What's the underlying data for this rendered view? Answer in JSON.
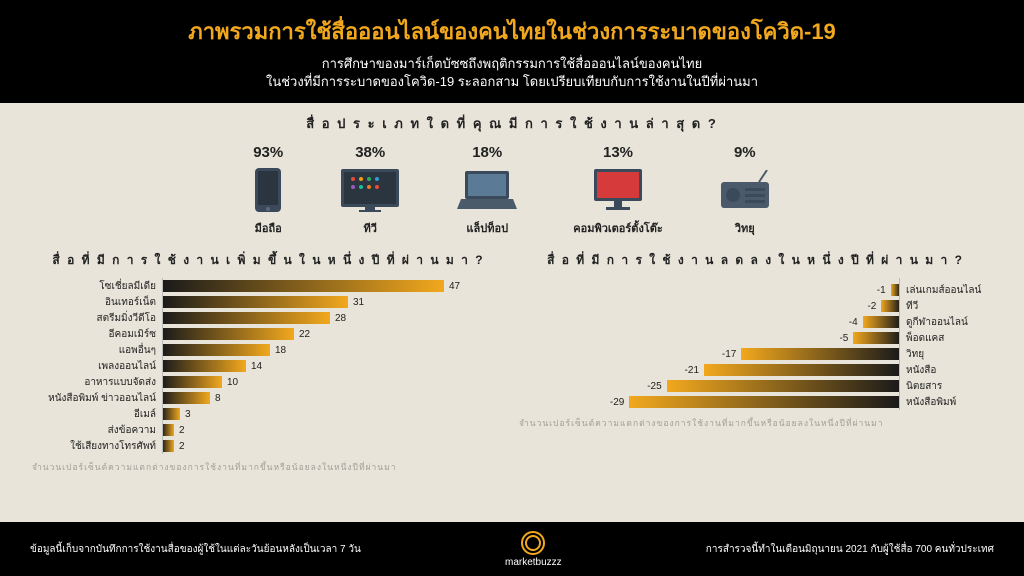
{
  "header": {
    "title": "ภาพรวมการใช้สื่อออนไลน์ของคนไทยในช่วงการระบาดของโควิด-19",
    "subtitle1": "การศึกษาของมาร์เก็ตบัซซถึงพฤติกรรมการใช้สื่อออนไลน์ของคนไทย",
    "subtitle2": "ในช่วงที่มีการระบาดของโควิด-19 ระลอกสาม โดยเปรียบเทียบกับการใช้งานในปีที่ผ่านมา"
  },
  "section_question": "สื่ อ ป ร ะ เ ภ ท ใ ด ที่ คุ ณ มี ก า ร ใ ช้ ง า น ล่ า สุ ด ?",
  "devices": [
    {
      "pct": "93%",
      "label": "มือถือ",
      "icon": "phone"
    },
    {
      "pct": "38%",
      "label": "ทีวี",
      "icon": "tv"
    },
    {
      "pct": "18%",
      "label": "แล็ปท็อป",
      "icon": "laptop"
    },
    {
      "pct": "13%",
      "label": "คอมพิวเตอร์ตั้งโต๊ะ",
      "icon": "desktop"
    },
    {
      "pct": "9%",
      "label": "วิทยุ",
      "icon": "radio"
    }
  ],
  "chart_left": {
    "title": "สื่ อ ที่ มี ก า ร ใ ช้ ง า น เ พิ่ ม ขึ้ น ใ น ห นึ่ ง ปี ที่ ผ่ า น ม า ?",
    "max": 50,
    "rows": [
      {
        "label": "โซเชี่ยลมีเดีย",
        "value": 47
      },
      {
        "label": "อินเทอร์เน็ต",
        "value": 31
      },
      {
        "label": "สตรีมมิ่งวีดีโอ",
        "value": 28
      },
      {
        "label": "อีคอมเมิร์ซ",
        "value": 22
      },
      {
        "label": "แอพอื่นๆ",
        "value": 18
      },
      {
        "label": "เพลงออนไลน์",
        "value": 14
      },
      {
        "label": "อาหารแบบจัดส่ง",
        "value": 10
      },
      {
        "label": "หนังสือพิมพ์ ข่าวออนไลน์",
        "value": 8
      },
      {
        "label": "อีเมล์",
        "value": 3
      },
      {
        "label": "ส่งข้อความ",
        "value": 2
      },
      {
        "label": "ใช้เสียงทางโทรศัพท์",
        "value": 2
      }
    ],
    "note": "จำนวนเปอร์เซ็นต์ความแตกต่างของการใช้งานที่มากขึ้นหรือน้อยลงในหนึ่งปีที่ผ่านมา"
  },
  "chart_right": {
    "title": "สื่ อ ที่ มี ก า ร ใ ช้ ง า น ล ด ล ง ใ น ห นึ่ ง ปี ที่ ผ่ า น ม า ?",
    "max": 30,
    "rows": [
      {
        "label": "เล่นเกมส์ออนไลน์",
        "value": -1
      },
      {
        "label": "ทีวี",
        "value": -2
      },
      {
        "label": "ดูกีฬาออนไลน์",
        "value": -4
      },
      {
        "label": "พ็อดแคส",
        "value": -5
      },
      {
        "label": "วิทยุ",
        "value": -17
      },
      {
        "label": "หนังสือ",
        "value": -21
      },
      {
        "label": "นิตยสาร",
        "value": -25
      },
      {
        "label": "หนังสือพิมพ์",
        "value": -29
      }
    ],
    "note": "จำนวนเปอร์เซ็นต์ความแตกต่างของการใช้งานที่มากขึ้นหรือน้อยลงในหนึ่งปีที่ผ่านมา"
  },
  "footer": {
    "left": "ข้อมูลนี้เก็บจากบันทึกการใช้งานสื่อของผู้ใช้ในแต่ละวันย้อนหลังเป็นเวลา 7 วัน",
    "right": "การสำรวจนี้ทำในเดือนมิถุนายน 2021 กับผู้ใช้สื่อ 700 คนทั่วประเทศ",
    "brand": "marketbuzzz"
  },
  "colors": {
    "accent": "#f2a81d",
    "bg": "#e8e4d9",
    "dark": "#000000",
    "bar_dark": "#1a1a1a"
  }
}
